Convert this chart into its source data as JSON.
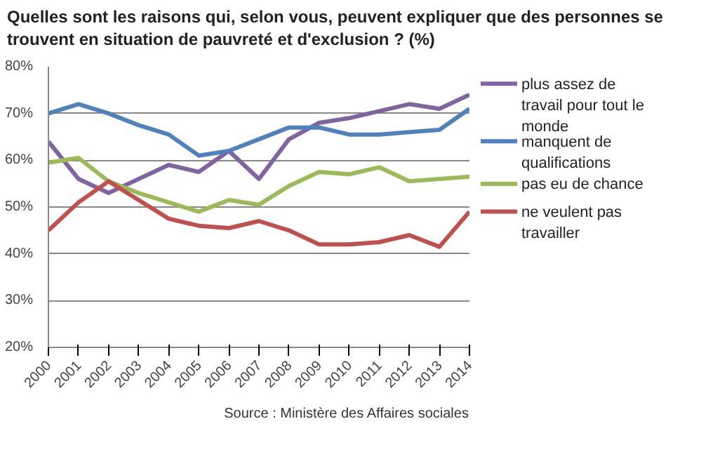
{
  "chart_data": {
    "type": "line",
    "title": "Quelles sont les raisons qui, selon vous, peuvent expliquer que des personnes se trouvent en situation de pauvreté et d'exclusion ? (%)",
    "categories": [
      "2000",
      "2001",
      "2002",
      "2003",
      "2004",
      "2005",
      "2006",
      "2007",
      "2008",
      "2009",
      "2010",
      "2011",
      "2012",
      "2013",
      "2014"
    ],
    "series": [
      {
        "name": "plus assez de travail pour tout le monde",
        "color": "#8064a2",
        "values": [
          64,
          56,
          53,
          56,
          59,
          57.5,
          62,
          56,
          64.5,
          68,
          69,
          70.5,
          72,
          71,
          74
        ]
      },
      {
        "name": "manquent de qualifications",
        "color": "#4f81bd",
        "values": [
          70,
          72,
          70,
          67.5,
          65.5,
          61,
          62,
          64.5,
          67,
          67,
          65.5,
          65.5,
          66,
          66.5,
          71
        ]
      },
      {
        "name": "pas eu de chance",
        "color": "#9bbb59",
        "values": [
          59.5,
          60.5,
          55.5,
          53,
          51,
          49,
          51.5,
          50.5,
          54.5,
          57.5,
          57,
          58.5,
          55.5,
          56,
          56.5
        ]
      },
      {
        "name": "ne veulent pas travailler",
        "color": "#c0504d",
        "values": [
          45,
          51,
          55.5,
          51.5,
          47.5,
          46,
          45.5,
          47,
          45,
          42,
          42,
          42.5,
          44,
          41.5,
          49
        ]
      }
    ],
    "ylim": [
      20,
      80
    ],
    "yticks": [
      {
        "value": 20,
        "label": "20%"
      },
      {
        "value": 30,
        "label": "30%"
      },
      {
        "value": 40,
        "label": "40%"
      },
      {
        "value": 50,
        "label": "50%"
      },
      {
        "value": 60,
        "label": "60%"
      },
      {
        "value": 70,
        "label": "70%"
      },
      {
        "value": 80,
        "label": "80%"
      }
    ],
    "grid": "y",
    "legend": "right",
    "line_style": "solid",
    "annotations": [
      "Source : Ministère des Affaires sociales"
    ]
  }
}
